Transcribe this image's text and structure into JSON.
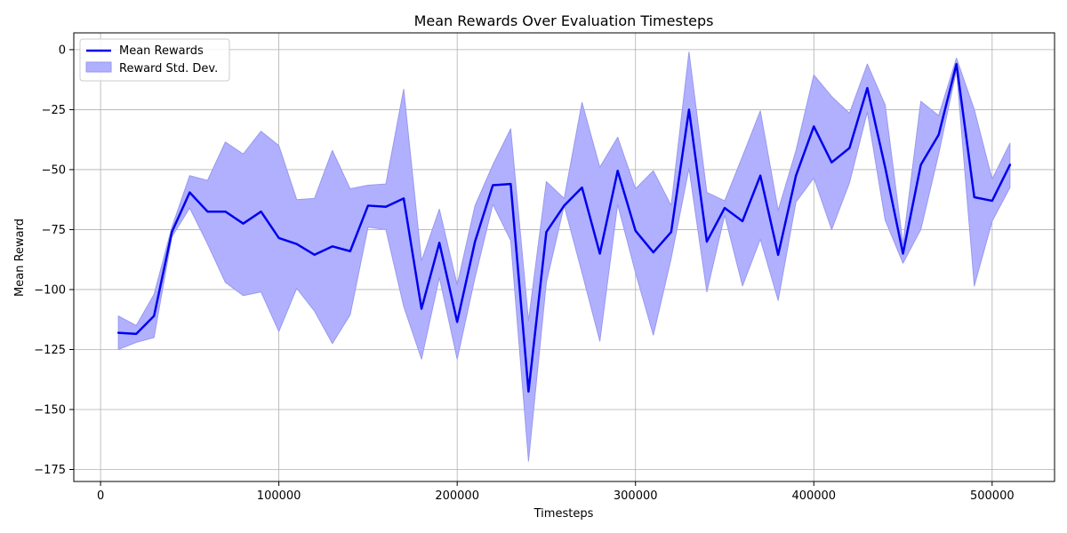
{
  "chart_data": {
    "type": "line",
    "title": "Mean Rewards Over Evaluation Timesteps",
    "xlabel": "Timesteps",
    "ylabel": "Mean Reward",
    "xlim": [
      -15000,
      535000
    ],
    "ylim": [
      -180,
      7
    ],
    "xticks": [
      0,
      100000,
      200000,
      300000,
      400000,
      500000
    ],
    "yticks": [
      0,
      -25,
      -50,
      -75,
      -100,
      -125,
      -150,
      -175
    ],
    "grid": true,
    "legend": {
      "position": "top-left",
      "entries": [
        "Mean Rewards",
        "Reward Std. Dev."
      ]
    },
    "colors": {
      "line": "#0000ee",
      "band_fill": "#b0b0ff",
      "band_edge": "#9999ee",
      "grid": "#b0b0b0"
    },
    "series": [
      {
        "name": "Mean Rewards",
        "x": [
          10000,
          20000,
          30000,
          40000,
          50000,
          60000,
          70000,
          80000,
          90000,
          100000,
          110000,
          120000,
          130000,
          140000,
          150000,
          160000,
          170000,
          180000,
          190000,
          200000,
          210000,
          220000,
          230000,
          240000,
          250000,
          260000,
          270000,
          280000,
          290000,
          300000,
          310000,
          320000,
          330000,
          340000,
          350000,
          360000,
          370000,
          380000,
          390000,
          400000,
          410000,
          420000,
          430000,
          440000,
          450000,
          460000,
          470000,
          480000,
          490000,
          500000,
          510000
        ],
        "values": [
          -118,
          -118.5,
          -111,
          -76,
          -59.5,
          -67.5,
          -67.5,
          -72.5,
          -67.5,
          -78.5,
          -81,
          -85.5,
          -82,
          -84,
          -65,
          -65.5,
          -62,
          -108,
          -80.5,
          -113.5,
          -80,
          -56.5,
          -56,
          -142.5,
          -76,
          -65,
          -57.5,
          -85,
          -50.5,
          -75.5,
          -84.5,
          -76,
          -25,
          -80,
          -66,
          -71.5,
          -52.5,
          -85.5,
          -52.5,
          -32,
          -47,
          -41,
          -16,
          -49,
          -85,
          -48,
          -35.5,
          -6,
          -61.5,
          -63,
          -48
        ]
      },
      {
        "name": "Reward Std. Dev.",
        "upper": [
          -111,
          -115,
          -102,
          -74,
          -52.5,
          -54.5,
          -38.5,
          -43.5,
          -34,
          -40,
          -62.5,
          -62,
          -42,
          -58,
          -56.5,
          -56,
          -16.5,
          -88,
          -66.5,
          -98,
          -65,
          -48,
          -33,
          -113,
          -55,
          -62,
          -22,
          -49,
          -36.5,
          -58,
          -50.5,
          -65,
          -1,
          -59.5,
          -63,
          -44.5,
          -25.5,
          -67,
          -42,
          -10.5,
          -19.5,
          -26.5,
          -6,
          -23,
          -81,
          -21.5,
          -27.5,
          -3.5,
          -25,
          -54,
          -39
        ],
        "lower": [
          -125,
          -122,
          -120,
          -78,
          -66,
          -81,
          -97,
          -102.5,
          -101,
          -117.5,
          -99.5,
          -109,
          -122.5,
          -110.5,
          -74,
          -75,
          -107,
          -129,
          -95,
          -129,
          -95,
          -64.5,
          -79.5,
          -171.5,
          -97,
          -65,
          -93,
          -121.5,
          -64.5,
          -93,
          -119,
          -87,
          -49.5,
          -101,
          -69,
          -98.5,
          -79,
          -104.5,
          -63.5,
          -53.5,
          -75,
          -55.5,
          -26,
          -71,
          -89,
          -75,
          -43.5,
          -8.5,
          -98.5,
          -71.5,
          -57.5
        ]
      }
    ]
  }
}
